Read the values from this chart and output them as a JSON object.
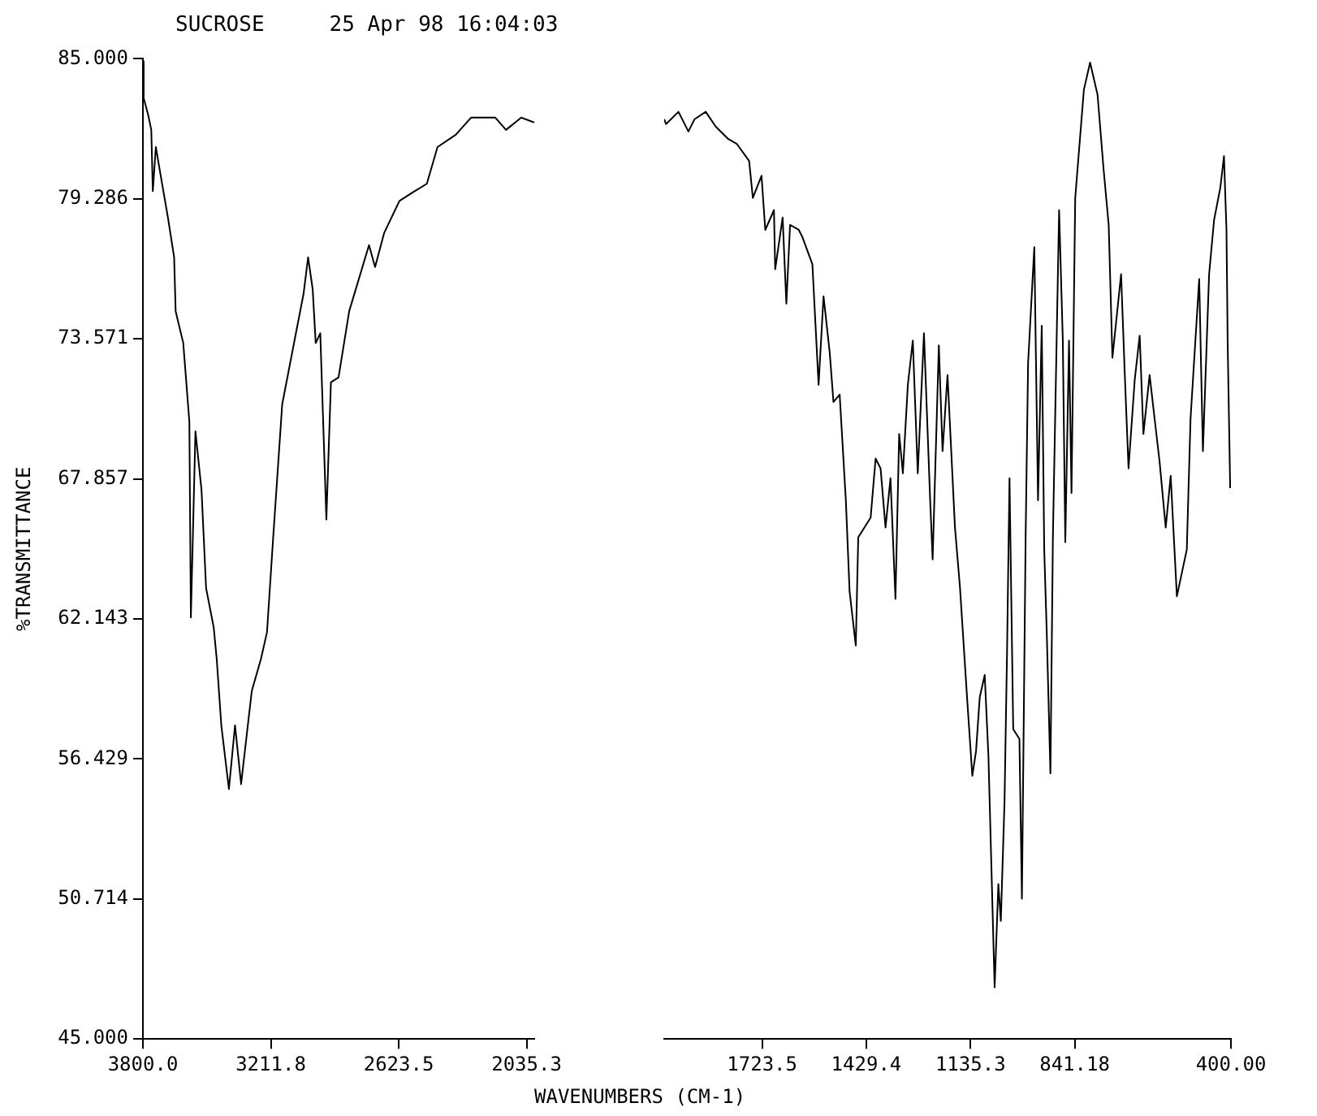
{
  "chart_data": [
    {
      "type": "line",
      "title": "SUCROSE",
      "annotations": [
        "25 Apr 98 16:04:03"
      ],
      "ylabel": "%TRANSMITTANCE",
      "xlim": [
        3800,
        2000
      ],
      "ylim": [
        45,
        85
      ],
      "xticks": [
        {
          "value": 3800,
          "label": "3800.0"
        },
        3211.8,
        2623.5,
        2035.3
      ],
      "yticks": [
        {
          "value": 45,
          "label": "45.000"
        },
        50.714,
        56.429,
        62.143,
        67.857,
        73.571,
        79.286,
        {
          "value": 85,
          "label": "85.000"
        }
      ],
      "grid": false,
      "series": [
        {
          "color": "#000000",
          "x": [
            3800,
            3796.5,
            3775.5,
            3761.5,
            3754.5,
            3740.5,
            3719.5,
            3684.5,
            3656.4,
            3649.4,
            3614.4,
            3586.4,
            3579.4,
            3558.4,
            3530.4,
            3509.4,
            3474.4,
            3460.4,
            3439.4,
            3404.4,
            3376.3,
            3348.3,
            3334.3,
            3299.3,
            3257.3,
            3229.3,
            3201.3,
            3159.3,
            3096.3,
            3061.3,
            3040.2,
            3019.2,
            3005.2,
            2984.2,
            2956.2,
            2935.2,
            2900.2,
            2851.2,
            2760.1,
            2732.1,
            2690.1,
            2620.1,
            2550.1,
            2494.1,
            2445.0,
            2361.0,
            2291.0,
            2179.0,
            2130.0,
            2059.9,
            2000
          ],
          "values": [
            84.9,
            83.4,
            82.7,
            82.1,
            79.6,
            81.4,
            80.3,
            78.5,
            76.9,
            74.7,
            73.4,
            70.2,
            62.2,
            69.8,
            67.4,
            63.4,
            61.8,
            60.5,
            57.8,
            55.2,
            57.8,
            55.4,
            56.5,
            59.2,
            60.5,
            61.6,
            65.4,
            70.9,
            73.8,
            75.4,
            76.9,
            75.6,
            73.4,
            73.8,
            66.2,
            71.8,
            72.0,
            74.7,
            77.4,
            76.5,
            77.9,
            79.2,
            79.6,
            79.9,
            81.4,
            81.9,
            82.6,
            82.6,
            82.1,
            82.6,
            82.4
          ]
        }
      ]
    },
    {
      "type": "line",
      "xlabel": "WAVENUMBERS (CM-1)",
      "xlim": [
        2000,
        400
      ],
      "ylim": [
        45,
        85
      ],
      "xticks": [
        1723.5,
        1429.4,
        1135.3,
        841.18,
        {
          "value": 400,
          "label": "400.00"
        }
      ],
      "tick_labels": "x",
      "grid": false,
      "series": [
        {
          "color": "#000000",
          "x": [
            2000,
            1994.7,
            1959.7,
            1931.7,
            1914.2,
            1882.7,
            1854.7,
            1819.7,
            1795.2,
            1760.2,
            1749.7,
            1725.2,
            1714.6,
            1690.1,
            1686.6,
            1665.6,
            1655.1,
            1644.6,
            1620.1,
            1609.6,
            1581.6,
            1564.1,
            1550.1,
            1532.6,
            1522.1,
            1504.6,
            1487.1,
            1476.6,
            1459.1,
            1452.1,
            1417.1,
            1403.1,
            1389.1,
            1375.1,
            1361.1,
            1347.1,
            1336.6,
            1326.1,
            1312.1,
            1298.1,
            1284.1,
            1266.6,
            1249.1,
            1242.1,
            1224.6,
            1214.1,
            1200.1,
            1179.1,
            1165.1,
            1144.1,
            1130.1,
            1119.6,
            1109.1,
            1095.1,
            1084.6,
            1067.1,
            1056.6,
            1049.6,
            1039.1,
            1032.1,
            1025.1,
            1014.6,
            997.1,
            990.1,
            979.6,
            972.6,
            955.1,
            944.6,
            934.1,
            927.1,
            920.1,
            909.6,
            902.6,
            885.1,
            874.6,
            867.6,
            857.1,
            850.1,
            839.6,
            815.1,
            797.6,
            776.6,
            759.1,
            745.1,
            734.6,
            710.1,
            699.6,
            689.1,
            671.6,
            657.6,
            647.1,
            629.6,
            612.1,
            601.6,
            584.1,
            570.1,
            552.6,
            524.6,
            514.1,
            489.6,
            479.1,
            461.6,
            447.6,
            430.1,
            419.6,
            412.6,
            409.1,
            402.1
          ],
          "values": [
            82.4,
            82.2,
            82.7,
            81.9,
            82.4,
            82.7,
            82.1,
            81.6,
            81.4,
            80.7,
            79.2,
            80.1,
            77.9,
            78.7,
            76.3,
            78.4,
            74.9,
            78.1,
            77.9,
            77.6,
            76.5,
            71.6,
            75.2,
            72.9,
            70.9,
            71.2,
            66.9,
            63.2,
            61.0,
            65.4,
            66.2,
            68.6,
            68.2,
            65.8,
            67.8,
            62.9,
            69.6,
            68.0,
            71.6,
            73.4,
            68.0,
            73.7,
            66.9,
            64.5,
            73.2,
            68.9,
            72.0,
            65.8,
            63.4,
            58.7,
            55.7,
            56.7,
            58.9,
            59.8,
            56.5,
            47.1,
            51.3,
            49.8,
            54.7,
            60.7,
            67.8,
            57.6,
            57.2,
            50.7,
            65.4,
            72.5,
            77.2,
            66.9,
            74.0,
            64.9,
            61.6,
            55.8,
            65.4,
            78.7,
            73.4,
            65.2,
            73.4,
            67.2,
            79.2,
            83.6,
            84.7,
            83.4,
            80.3,
            78.1,
            72.7,
            76.1,
            72.0,
            68.2,
            71.8,
            73.6,
            69.6,
            72.0,
            69.8,
            68.5,
            65.8,
            67.9,
            63.0,
            64.9,
            70.2,
            75.9,
            68.9,
            76.1,
            78.3,
            79.6,
            80.9,
            77.9,
            73.2,
            67.4
          ]
        }
      ]
    }
  ]
}
